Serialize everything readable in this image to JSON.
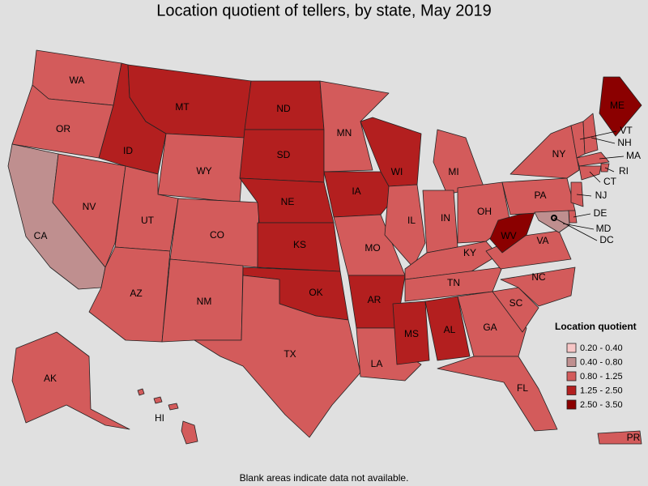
{
  "title": "Location quotient of tellers, by state, May 2019",
  "legend": {
    "title": "Location quotient",
    "items": [
      {
        "label": "0.20 - 0.40",
        "color": "#f7c6c6"
      },
      {
        "label": "0.40 - 0.80",
        "color": "#bf8f8f"
      },
      {
        "label": "0.80 - 1.25",
        "color": "#d35b5b"
      },
      {
        "label": "1.25 - 2.50",
        "color": "#b31f1f"
      },
      {
        "label": "2.50 - 3.50",
        "color": "#8b0000"
      }
    ]
  },
  "states": [
    {
      "label": "WA",
      "color": "#d35b5b"
    },
    {
      "label": "OR",
      "color": "#d35b5b"
    },
    {
      "label": "CA",
      "color": "#bf8f8f"
    },
    {
      "label": "NV",
      "color": "#d35b5b"
    },
    {
      "label": "ID",
      "color": "#b31f1f"
    },
    {
      "label": "MT",
      "color": "#b31f1f"
    },
    {
      "label": "WY",
      "color": "#d35b5b"
    },
    {
      "label": "UT",
      "color": "#d35b5b"
    },
    {
      "label": "AZ",
      "color": "#d35b5b"
    },
    {
      "label": "CO",
      "color": "#d35b5b"
    },
    {
      "label": "NM",
      "color": "#d35b5b"
    },
    {
      "label": "ND",
      "color": "#b31f1f"
    },
    {
      "label": "SD",
      "color": "#b31f1f"
    },
    {
      "label": "NE",
      "color": "#b31f1f"
    },
    {
      "label": "KS",
      "color": "#b31f1f"
    },
    {
      "label": "OK",
      "color": "#b31f1f"
    },
    {
      "label": "TX",
      "color": "#d35b5b"
    },
    {
      "label": "MN",
      "color": "#d35b5b"
    },
    {
      "label": "IA",
      "color": "#b31f1f"
    },
    {
      "label": "MO",
      "color": "#d35b5b"
    },
    {
      "label": "AR",
      "color": "#b31f1f"
    },
    {
      "label": "LA",
      "color": "#d35b5b"
    },
    {
      "label": "WI",
      "color": "#b31f1f"
    },
    {
      "label": "IL",
      "color": "#d35b5b"
    },
    {
      "label": "MI",
      "color": "#d35b5b"
    },
    {
      "label": "IN",
      "color": "#d35b5b"
    },
    {
      "label": "OH",
      "color": "#d35b5b"
    },
    {
      "label": "KY",
      "color": "#d35b5b"
    },
    {
      "label": "TN",
      "color": "#d35b5b"
    },
    {
      "label": "MS",
      "color": "#b31f1f"
    },
    {
      "label": "AL",
      "color": "#b31f1f"
    },
    {
      "label": "GA",
      "color": "#d35b5b"
    },
    {
      "label": "FL",
      "color": "#d35b5b"
    },
    {
      "label": "SC",
      "color": "#d35b5b"
    },
    {
      "label": "NC",
      "color": "#d35b5b"
    },
    {
      "label": "VA",
      "color": "#d35b5b"
    },
    {
      "label": "WV",
      "color": "#8b0000"
    },
    {
      "label": "PA",
      "color": "#d35b5b"
    },
    {
      "label": "NY",
      "color": "#d35b5b"
    },
    {
      "label": "ME",
      "color": "#8b0000"
    },
    {
      "label": "VT",
      "color": "#d35b5b"
    },
    {
      "label": "NH",
      "color": "#d35b5b"
    },
    {
      "label": "MA",
      "color": "#d35b5b"
    },
    {
      "label": "RI",
      "color": "#d35b5b"
    },
    {
      "label": "CT",
      "color": "#d35b5b"
    },
    {
      "label": "NJ",
      "color": "#d35b5b"
    },
    {
      "label": "DE",
      "color": "#d35b5b"
    },
    {
      "label": "MD",
      "color": "#bf8f8f"
    },
    {
      "label": "DC",
      "color": "#bf8f8f"
    },
    {
      "label": "HI",
      "color": "#d35b5b"
    },
    {
      "label": "AK",
      "color": "#d35b5b"
    },
    {
      "label": "PR",
      "color": "#d35b5b"
    }
  ],
  "footnote": "Blank areas indicate data not available."
}
